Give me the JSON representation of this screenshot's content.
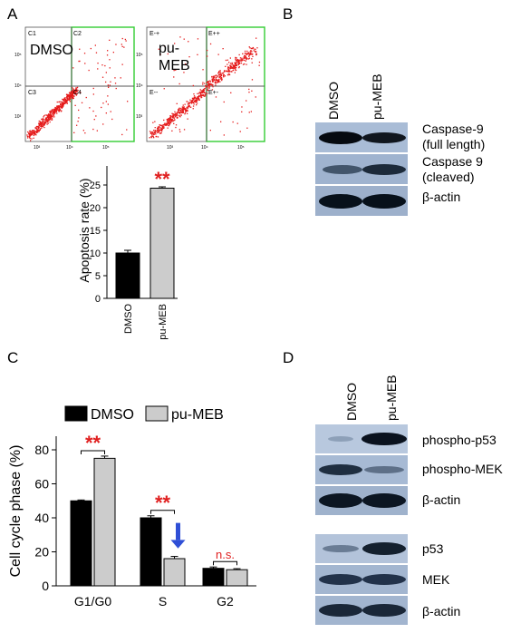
{
  "panels": {
    "A": {
      "letter": "A",
      "flow": {
        "left": {
          "name": "DMSO",
          "quadrants": [
            "C1",
            "C2",
            "C3",
            "C4"
          ]
        },
        "right": {
          "name_lines": [
            "pu-",
            "MEB"
          ],
          "quadrants": [
            "E-+",
            "E++",
            "E--",
            "E+-"
          ]
        },
        "axis_ticks": [
          "10³",
          "10⁴",
          "10⁵"
        ]
      }
    },
    "B": {
      "letter": "B",
      "lanes": [
        "DMSO",
        "pu-MEB"
      ],
      "bands": [
        {
          "label": "Caspase-9\n(full length)"
        },
        {
          "label": "Caspase 9\n(cleaved)"
        },
        {
          "label": "β-actin"
        }
      ]
    },
    "C": {
      "letter": "C"
    },
    "D": {
      "letter": "D",
      "lanes": [
        "DMSO",
        "pu-MEB"
      ],
      "bands_top": [
        {
          "label": "phospho-p53"
        },
        {
          "label": "phospho-MEK"
        },
        {
          "label": "β-actin"
        }
      ],
      "bands_bottom": [
        {
          "label": "p53"
        },
        {
          "label": "MEK"
        },
        {
          "label": "β-actin"
        }
      ]
    }
  },
  "colors": {
    "dmso": "#000000",
    "pumeb": "#cccccc",
    "significance": "#e02020",
    "arrow": "#2f4fd6",
    "flow_gate": "#33cc33",
    "dots": "#e51b1b"
  },
  "chart_data": [
    {
      "type": "bar",
      "panel": "A",
      "categories": [
        "DMSO",
        "pu-MEB"
      ],
      "values": [
        10.0,
        24.3
      ],
      "errors": [
        0.6,
        0.3
      ],
      "ylabel": "Apoptosis rate (%)",
      "ylim": [
        0,
        30
      ],
      "yticks": [
        0,
        5,
        10,
        15,
        20,
        25
      ],
      "annotations": [
        {
          "text": "**",
          "category": "pu-MEB"
        }
      ]
    },
    {
      "type": "bar",
      "panel": "C",
      "categories": [
        "G1/G0",
        "S",
        "G2"
      ],
      "series": [
        {
          "name": "DMSO",
          "values": [
            50.0,
            40.0,
            10.3
          ],
          "errors": [
            0.5,
            1.2,
            0.8
          ]
        },
        {
          "name": "pu-MEB",
          "values": [
            75.0,
            16.0,
            9.5
          ],
          "errors": [
            1.3,
            1.3,
            0.6
          ]
        }
      ],
      "ylabel": "Cell cycle phase (%)",
      "ylim": [
        0,
        88
      ],
      "yticks": [
        0,
        20,
        40,
        60,
        80
      ],
      "legend": "top",
      "annotations": [
        {
          "text": "**",
          "category": "G1/G0"
        },
        {
          "text": "**",
          "category": "S"
        },
        {
          "text": "n.s.",
          "category": "G2"
        }
      ]
    }
  ]
}
